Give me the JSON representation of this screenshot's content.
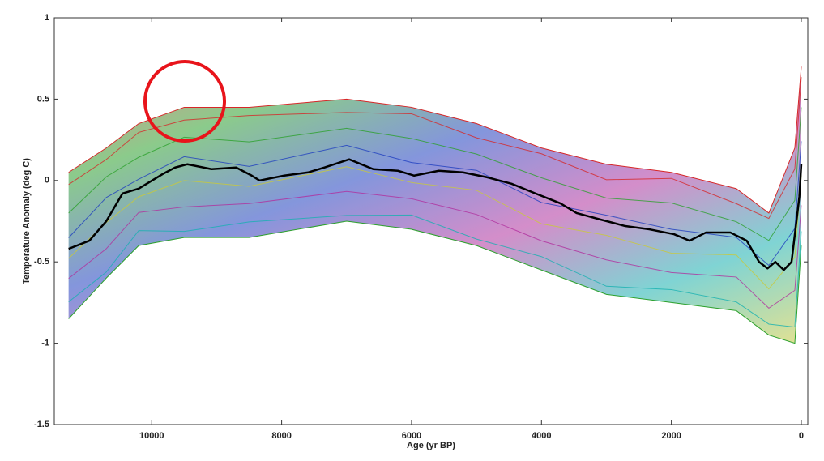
{
  "chart_data": {
    "type": "line",
    "xlabel": "Age (yr BP)",
    "ylabel": "Temperature Anomaly (deg C)",
    "xlim": [
      11500,
      -100
    ],
    "ylim": [
      -1.5,
      1
    ],
    "xticks": [
      10000,
      8000,
      6000,
      4000,
      2000,
      0
    ],
    "yticks": [
      -1.5,
      -1,
      -0.5,
      0,
      0.5,
      1
    ],
    "envelope": {
      "colors": [
        "#d62728",
        "#2ca02c",
        "#1f3fbf",
        "#c9c93a",
        "#b0309e",
        "#17b0b0"
      ],
      "x": [
        11280,
        10700,
        10200,
        9500,
        8500,
        7000,
        6000,
        5000,
        4000,
        3000,
        2000,
        1000,
        500,
        100,
        0
      ],
      "upper": [
        0.05,
        0.2,
        0.35,
        0.45,
        0.45,
        0.5,
        0.45,
        0.35,
        0.2,
        0.1,
        0.05,
        -0.05,
        -0.2,
        0.2,
        0.7
      ],
      "lower": [
        -0.85,
        -0.6,
        -0.4,
        -0.35,
        -0.35,
        -0.25,
        -0.3,
        -0.4,
        -0.55,
        -0.7,
        -0.75,
        -0.8,
        -0.95,
        -1.0,
        -0.4
      ]
    },
    "series": [
      {
        "color": "#000000",
        "x": [
          11280,
          10960,
          10700,
          10450,
          10200,
          9830,
          9640,
          9450,
          9080,
          8700,
          8460,
          8340,
          7960,
          7590,
          7340,
          6960,
          6590,
          6210,
          5960,
          5580,
          5210,
          4840,
          4460,
          4090,
          3710,
          3460,
          3090,
          2710,
          2340,
          1960,
          1720,
          1470,
          1090,
          840,
          650,
          520,
          400,
          270,
          150,
          30,
          0
        ],
        "values": [
          -0.42,
          -0.37,
          -0.25,
          -0.08,
          -0.05,
          0.04,
          0.08,
          0.1,
          0.07,
          0.08,
          0.03,
          0.0,
          0.03,
          0.05,
          0.08,
          0.13,
          0.07,
          0.06,
          0.03,
          0.06,
          0.05,
          0.02,
          -0.02,
          -0.08,
          -0.14,
          -0.2,
          -0.24,
          -0.28,
          -0.3,
          -0.33,
          -0.37,
          -0.32,
          -0.32,
          -0.37,
          -0.5,
          -0.54,
          -0.5,
          -0.55,
          -0.5,
          -0.1,
          0.1
        ]
      }
    ]
  }
}
